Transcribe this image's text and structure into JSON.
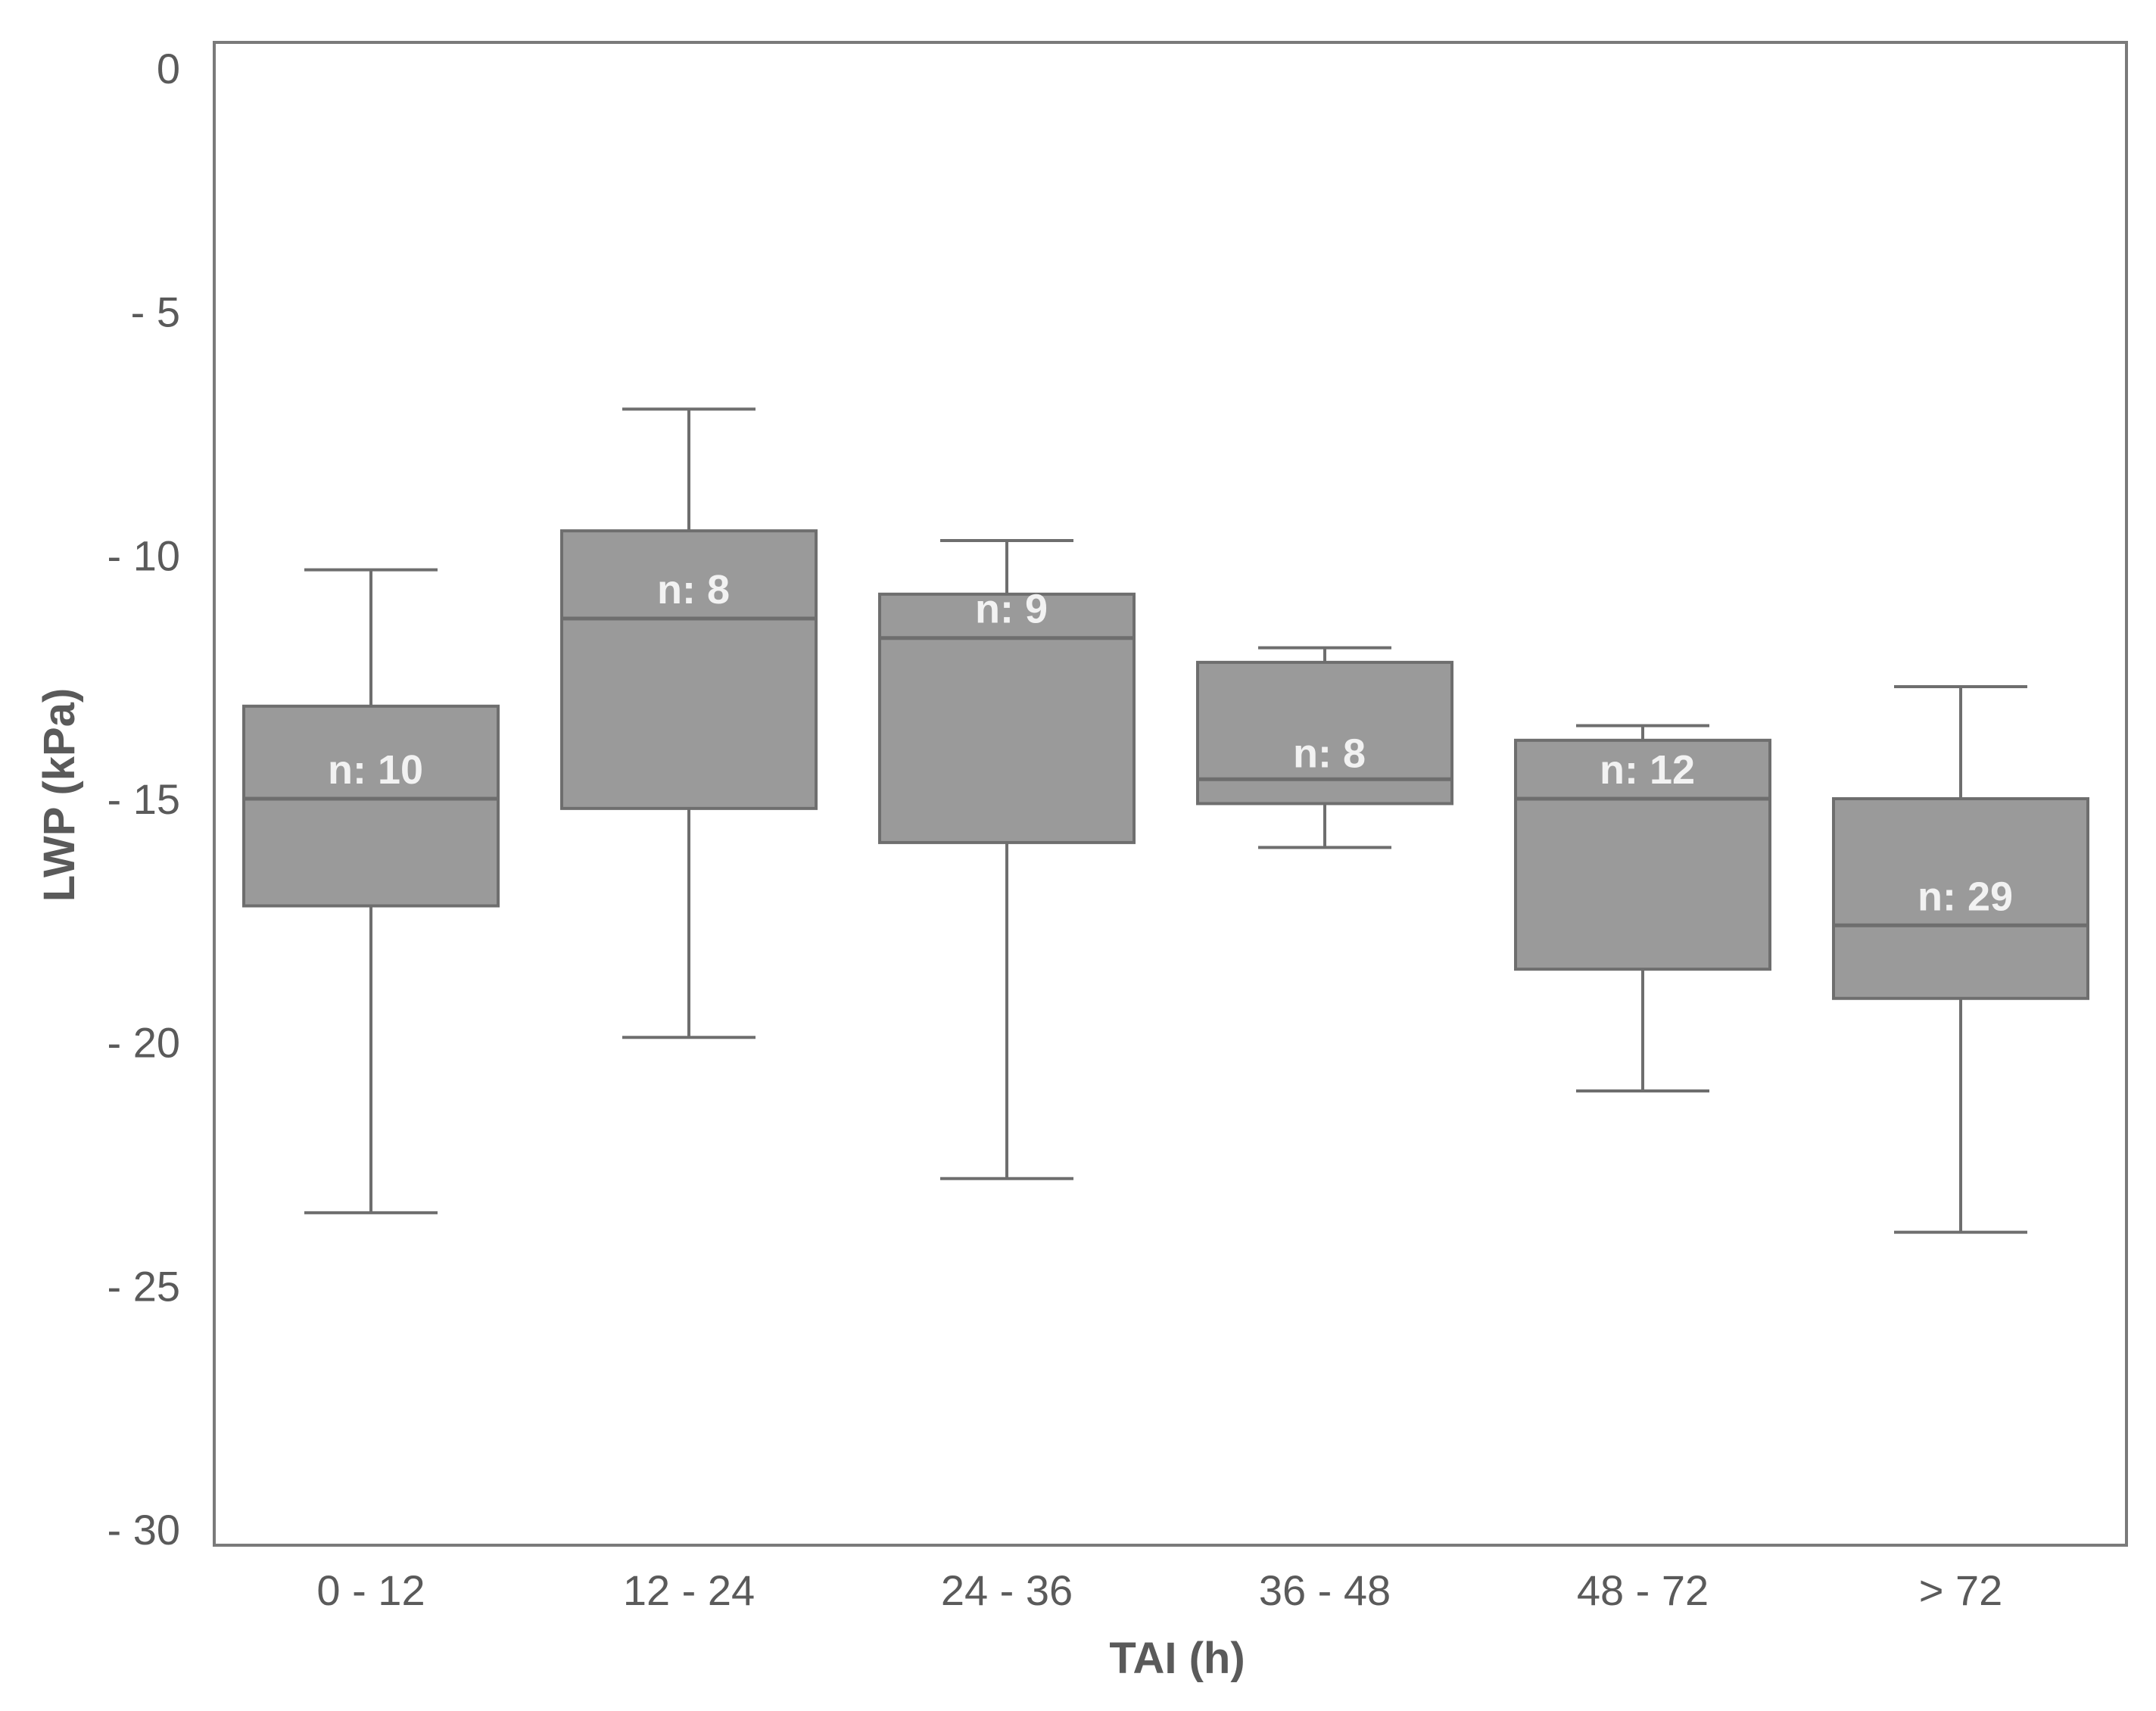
{
  "chart_data": {
    "type": "box",
    "xlabel": "TAI (h)",
    "ylabel": "LWP (kPa)",
    "ylim": [
      -30,
      0
    ],
    "yticks": [
      {
        "value": 0,
        "label": "0"
      },
      {
        "value": -5,
        "label": "- 5"
      },
      {
        "value": -10,
        "label": "- 10"
      },
      {
        "value": -15,
        "label": "- 15"
      },
      {
        "value": -20,
        "label": "- 20"
      },
      {
        "value": -25,
        "label": "- 25"
      },
      {
        "value": -30,
        "label": "- 30"
      }
    ],
    "grid": false,
    "box_color": "#9a9a9a",
    "categories": [
      "0 - 12",
      "12 - 24",
      "24 - 36",
      "36 - 48",
      "48 - 72",
      "> 72"
    ],
    "boxes": [
      {
        "category": "0 - 12",
        "n_label": "n: 10",
        "whisker_high": -10.3,
        "q3": -13.1,
        "median": -15.0,
        "q1": -17.2,
        "whisker_low": -23.5
      },
      {
        "category": "12 - 24",
        "n_label": "n: 8",
        "whisker_high": -7.0,
        "q3": -9.5,
        "median": -11.3,
        "q1": -15.2,
        "whisker_low": -19.9
      },
      {
        "category": "24 - 36",
        "n_label": "n: 9",
        "whisker_high": -9.7,
        "q3": -10.8,
        "median": -11.7,
        "q1": -15.9,
        "whisker_low": -22.8
      },
      {
        "category": "36 - 48",
        "n_label": "n: 8",
        "whisker_high": -11.9,
        "q3": -12.2,
        "median": -14.6,
        "q1": -15.1,
        "whisker_low": -16.0
      },
      {
        "category": "48 - 72",
        "n_label": "n: 12",
        "whisker_high": -13.5,
        "q3": -13.8,
        "median": -15.0,
        "q1": -18.5,
        "whisker_low": -21.0
      },
      {
        "category": "> 72",
        "n_label": "n: 29",
        "whisker_high": -12.7,
        "q3": -15.0,
        "median": -17.6,
        "q1": -19.1,
        "whisker_low": -23.9
      }
    ]
  }
}
